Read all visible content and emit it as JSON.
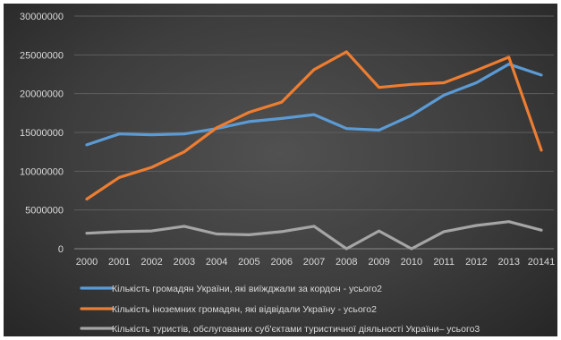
{
  "chart_data": {
    "type": "line",
    "categories": [
      "2000",
      "2001",
      "2002",
      "2003",
      "2004",
      "2005",
      "2006",
      "2007",
      "2008",
      "2009",
      "2010",
      "2011",
      "2012",
      "2013",
      "20141"
    ],
    "ylim": [
      0,
      30000000
    ],
    "yticks": [
      "0",
      "5000000",
      "10000000",
      "15000000",
      "20000000",
      "25000000",
      "30000000"
    ],
    "grid": true,
    "legend_position": "bottom",
    "series": [
      {
        "name": "Кількість громадян України, які виїжджали за кордон - усього2",
        "color": "#5b9bd5",
        "values": [
          13400000,
          14800000,
          14700000,
          14800000,
          15500000,
          16400000,
          16800000,
          17300000,
          15500000,
          15300000,
          17200000,
          19800000,
          21400000,
          23800000,
          22400000
        ]
      },
      {
        "name": "Кількість іноземних громадян, які відвідали Україну - усього2",
        "color": "#ed7d31",
        "values": [
          6400000,
          9200000,
          10500000,
          12500000,
          15600000,
          17600000,
          18900000,
          23100000,
          25400000,
          20800000,
          21200000,
          21400000,
          23000000,
          24700000,
          12700000
        ]
      },
      {
        "name": "Кількість туристів, обслугованих суб'єктами туристичної діяльності України– усього3",
        "color": "#a5a5a5",
        "values": [
          2000000,
          2200000,
          2300000,
          2900000,
          1900000,
          1800000,
          2200000,
          2900000,
          0,
          2300000,
          0,
          2200000,
          3000000,
          3500000,
          2400000
        ]
      }
    ]
  }
}
